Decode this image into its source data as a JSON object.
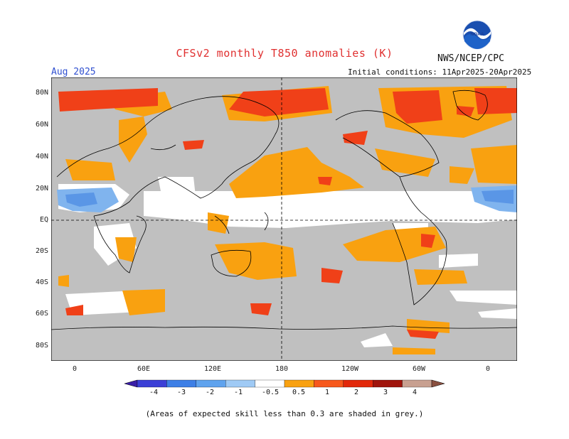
{
  "title": "CFSv2 monthly T850 anomalies (K)",
  "month": "Aug 2025",
  "org": "NWS/NCEP/CPC",
  "logo_text": "NOAA",
  "initial_conditions": "Initial conditions: 11Apr2025-20Apr2025",
  "lat_labels": [
    "80N",
    "60N",
    "40N",
    "20N",
    "EQ",
    "20S",
    "40S",
    "60S",
    "80S"
  ],
  "lon_labels": [
    "0",
    "60E",
    "120E",
    "180",
    "120W",
    "60W",
    "0"
  ],
  "colorbar_labels": [
    "-4",
    "-3",
    "-2",
    "-1",
    "-0.5",
    "0.5",
    "1",
    "2",
    "3",
    "4"
  ],
  "colorbar_colors": [
    "#3a1fa8",
    "#3b3fd6",
    "#3d7fe6",
    "#5fa3ee",
    "#9fcaf5",
    "#ffffff",
    "#f9a110",
    "#f7581c",
    "#e2280a",
    "#a0140c",
    "#c8a090",
    "#8a5040"
  ],
  "footnote": "(Areas of expected skill less than 0.3 are shaded in grey.)",
  "colors": {
    "title": "#e03030",
    "month": "#3050d0",
    "grey_skill": "#c0c0c0",
    "orange": "#f9a110",
    "red": "#f04018",
    "light_blue": "#80b4ee",
    "blue": "#5a96e6"
  }
}
